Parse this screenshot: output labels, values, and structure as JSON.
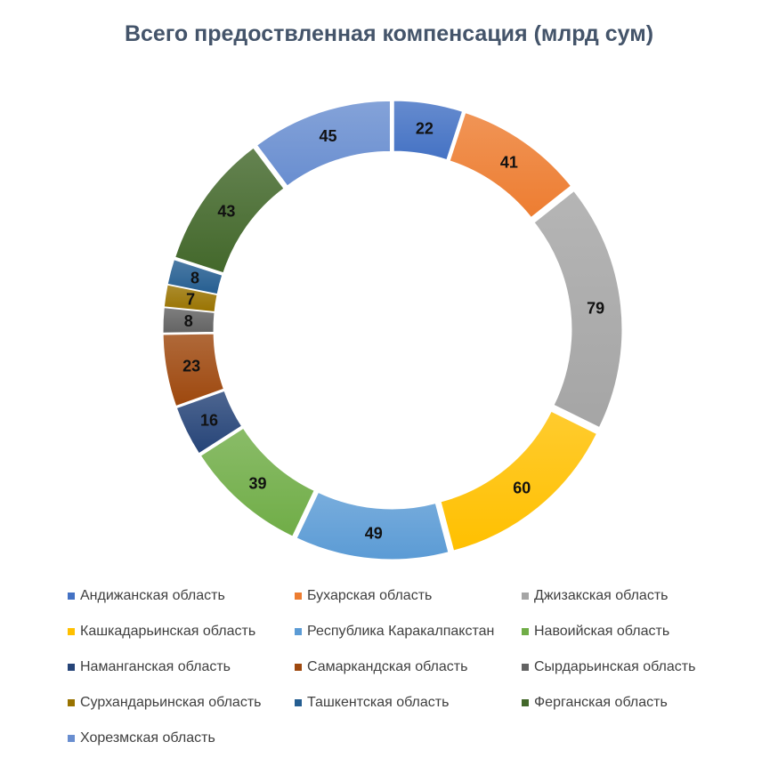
{
  "chart_data": {
    "type": "pie",
    "variant": "donut-exploded",
    "title": "Всего предоствленная компенсация (млрд сум)",
    "legend_position": "bottom",
    "data_labels": true,
    "categories": [
      "Андижанская область",
      "Бухарская область",
      "Джизакская область",
      "Кашкадарьинская область",
      "Республика Каракалпакстан",
      "Навоийская область",
      "Наманганская область",
      "Самаркандская область",
      "Сырдарьинская область",
      "Сурхандарьинская область",
      "Ташкентская область",
      "Ферганская область",
      "Хорезмская область"
    ],
    "values": [
      22,
      41,
      79,
      60,
      49,
      39,
      16,
      23,
      8,
      7,
      8,
      43,
      45
    ],
    "colors": [
      "#4472C4",
      "#ED7D31",
      "#A5A5A5",
      "#FFC000",
      "#5B9BD5",
      "#70AD47",
      "#264478",
      "#9E480E",
      "#636363",
      "#997300",
      "#255E91",
      "#43682B",
      "#698ED0"
    ]
  }
}
